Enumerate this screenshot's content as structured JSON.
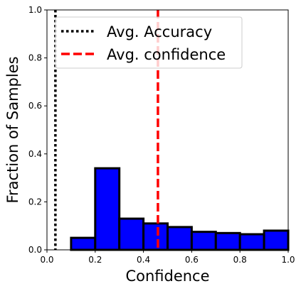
{
  "chart_data": {
    "type": "bar",
    "xlabel": "Confidence",
    "ylabel": "Fraction of Samples",
    "xlim": [
      0.0,
      1.0
    ],
    "ylim": [
      0.0,
      1.0
    ],
    "xticks": [
      "0.0",
      "0.2",
      "0.4",
      "0.6",
      "0.8",
      "1.0"
    ],
    "yticks": [
      "0.0",
      "0.2",
      "0.4",
      "0.6",
      "0.8",
      "1.0"
    ],
    "bins": [
      {
        "start": 0.0,
        "end": 0.1,
        "value": 0.0
      },
      {
        "start": 0.1,
        "end": 0.2,
        "value": 0.05
      },
      {
        "start": 0.2,
        "end": 0.3,
        "value": 0.34
      },
      {
        "start": 0.3,
        "end": 0.4,
        "value": 0.13
      },
      {
        "start": 0.4,
        "end": 0.5,
        "value": 0.11
      },
      {
        "start": 0.5,
        "end": 0.6,
        "value": 0.095
      },
      {
        "start": 0.6,
        "end": 0.7,
        "value": 0.075
      },
      {
        "start": 0.7,
        "end": 0.8,
        "value": 0.07
      },
      {
        "start": 0.8,
        "end": 0.9,
        "value": 0.065
      },
      {
        "start": 0.9,
        "end": 1.0,
        "value": 0.08
      }
    ],
    "bar_color": "#0000ff",
    "bar_edge_color": "#000000",
    "reference_lines": [
      {
        "name": "Avg. Accuracy",
        "x": 0.035,
        "color": "#000000",
        "style": "dotted"
      },
      {
        "name": "Avg. confidence",
        "x": 0.46,
        "color": "#ff0000",
        "style": "dashed"
      }
    ],
    "legend_position": "top-right",
    "grid": false
  }
}
